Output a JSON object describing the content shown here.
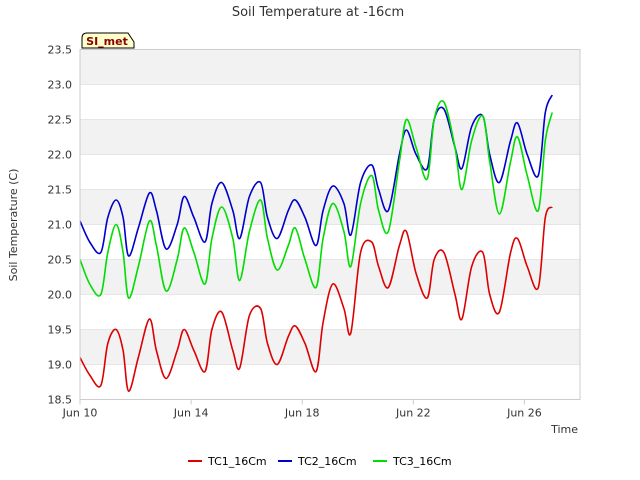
{
  "chart_data": {
    "type": "line",
    "title": "Soil Temperature at -16cm",
    "xlabel": "Time",
    "ylabel": "Soil Temperature (C)",
    "badge": "SI_met",
    "xlim": [
      0,
      18
    ],
    "ylim": [
      18.5,
      23.5
    ],
    "x_ticks": [
      {
        "label": "Jun 10",
        "value": 0
      },
      {
        "label": "Jun 14",
        "value": 4
      },
      {
        "label": "Jun 18",
        "value": 8
      },
      {
        "label": "Jun 22",
        "value": 12
      },
      {
        "label": "Jun 26",
        "value": 16
      }
    ],
    "y_ticks": [
      {
        "label": "18.5",
        "value": 18.5
      },
      {
        "label": "19.0",
        "value": 19.0
      },
      {
        "label": "19.5",
        "value": 19.5
      },
      {
        "label": "20.0",
        "value": 20.0
      },
      {
        "label": "20.5",
        "value": 20.5
      },
      {
        "label": "21.0",
        "value": 21.0
      },
      {
        "label": "21.5",
        "value": 21.5
      },
      {
        "label": "22.0",
        "value": 22.0
      },
      {
        "label": "22.5",
        "value": 22.5
      },
      {
        "label": "23.0",
        "value": 23.0
      },
      {
        "label": "23.5",
        "value": 23.5
      }
    ],
    "series": [
      {
        "name": "TC1_16Cm",
        "color": "#dd0000",
        "x": [
          0.0,
          0.35,
          0.75,
          1.0,
          1.3,
          1.55,
          1.75,
          2.1,
          2.5,
          2.75,
          3.1,
          3.5,
          3.75,
          4.1,
          4.5,
          4.75,
          5.1,
          5.5,
          5.75,
          6.1,
          6.5,
          6.75,
          7.1,
          7.5,
          7.75,
          8.1,
          8.5,
          8.75,
          9.1,
          9.5,
          9.75,
          10.1,
          10.5,
          10.75,
          11.1,
          11.5,
          11.75,
          12.1,
          12.5,
          12.75,
          13.1,
          13.5,
          13.75,
          14.1,
          14.5,
          14.75,
          15.1,
          15.5,
          15.75,
          16.1,
          16.5,
          16.75,
          17.0
        ],
        "y": [
          19.1,
          18.85,
          18.7,
          19.3,
          19.5,
          19.2,
          18.62,
          19.1,
          19.65,
          19.2,
          18.8,
          19.2,
          19.5,
          19.2,
          18.9,
          19.5,
          19.75,
          19.2,
          18.95,
          19.7,
          19.8,
          19.3,
          19.0,
          19.4,
          19.55,
          19.3,
          18.9,
          19.6,
          20.15,
          19.8,
          19.45,
          20.6,
          20.75,
          20.4,
          20.1,
          20.7,
          20.9,
          20.3,
          19.95,
          20.5,
          20.6,
          20.0,
          19.65,
          20.4,
          20.6,
          20.0,
          19.75,
          20.6,
          20.8,
          20.4,
          20.1,
          21.1,
          21.25
        ]
      },
      {
        "name": "TC2_16Cm",
        "color": "#0000cc",
        "x": [
          0.0,
          0.35,
          0.75,
          1.0,
          1.3,
          1.55,
          1.75,
          2.1,
          2.5,
          2.75,
          3.1,
          3.5,
          3.75,
          4.1,
          4.5,
          4.75,
          5.1,
          5.5,
          5.75,
          6.1,
          6.5,
          6.75,
          7.1,
          7.5,
          7.75,
          8.1,
          8.5,
          8.75,
          9.1,
          9.5,
          9.75,
          10.1,
          10.5,
          10.75,
          11.1,
          11.5,
          11.75,
          12.1,
          12.5,
          12.75,
          13.1,
          13.5,
          13.75,
          14.1,
          14.5,
          14.75,
          15.1,
          15.5,
          15.75,
          16.1,
          16.5,
          16.75,
          17.0
        ],
        "y": [
          21.05,
          20.75,
          20.6,
          21.1,
          21.35,
          21.1,
          20.55,
          20.95,
          21.45,
          21.2,
          20.65,
          21.0,
          21.4,
          21.1,
          20.75,
          21.3,
          21.6,
          21.2,
          20.8,
          21.4,
          21.6,
          21.1,
          20.8,
          21.2,
          21.35,
          21.1,
          20.7,
          21.2,
          21.55,
          21.3,
          20.85,
          21.6,
          21.85,
          21.5,
          21.2,
          22.0,
          22.35,
          22.0,
          21.8,
          22.5,
          22.65,
          22.1,
          21.8,
          22.4,
          22.55,
          22.0,
          21.6,
          22.2,
          22.45,
          22.0,
          21.7,
          22.6,
          22.85
        ]
      },
      {
        "name": "TC3_16Cm",
        "color": "#00dd00",
        "x": [
          0.0,
          0.35,
          0.75,
          1.0,
          1.3,
          1.55,
          1.75,
          2.1,
          2.5,
          2.75,
          3.1,
          3.5,
          3.75,
          4.1,
          4.5,
          4.75,
          5.1,
          5.5,
          5.75,
          6.1,
          6.5,
          6.75,
          7.1,
          7.5,
          7.75,
          8.1,
          8.5,
          8.75,
          9.1,
          9.5,
          9.75,
          10.1,
          10.5,
          10.75,
          11.1,
          11.5,
          11.75,
          12.1,
          12.5,
          12.75,
          13.1,
          13.5,
          13.75,
          14.1,
          14.5,
          14.75,
          15.1,
          15.5,
          15.75,
          16.1,
          16.5,
          16.75,
          17.0
        ],
        "y": [
          20.5,
          20.15,
          20.0,
          20.6,
          21.0,
          20.6,
          19.95,
          20.4,
          21.05,
          20.7,
          20.05,
          20.5,
          20.95,
          20.6,
          20.15,
          20.8,
          21.25,
          20.8,
          20.2,
          20.9,
          21.35,
          20.8,
          20.35,
          20.7,
          20.95,
          20.5,
          20.1,
          20.8,
          21.3,
          20.9,
          20.4,
          21.3,
          21.7,
          21.2,
          20.9,
          21.9,
          22.5,
          22.1,
          21.65,
          22.5,
          22.75,
          22.1,
          21.5,
          22.2,
          22.55,
          21.9,
          21.15,
          21.9,
          22.25,
          21.7,
          21.2,
          22.2,
          22.6
        ]
      }
    ]
  }
}
